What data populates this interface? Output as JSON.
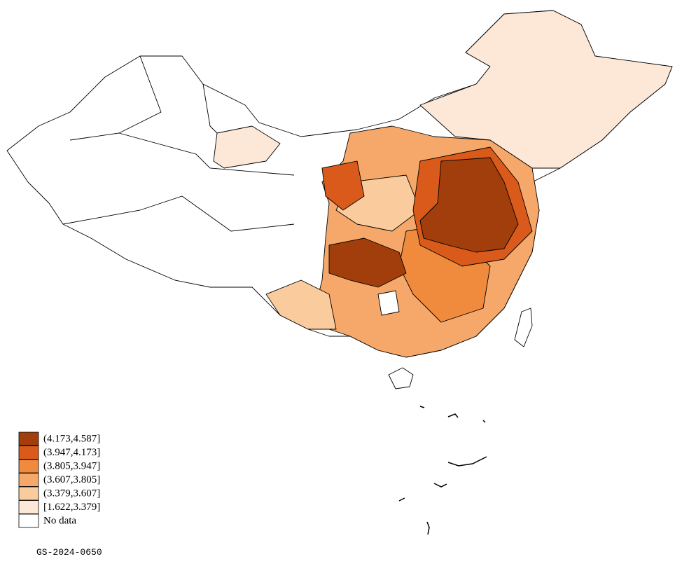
{
  "legend": {
    "items": [
      {
        "label": "(4.173,4.587]",
        "color": "#a13e0c"
      },
      {
        "label": "(3.947,4.173]",
        "color": "#d95a1a"
      },
      {
        "label": "(3.805,3.947]",
        "color": "#f08b3d"
      },
      {
        "label": "(3.607,3.805]",
        "color": "#f5a86a"
      },
      {
        "label": "(3.379,3.607]",
        "color": "#f9cb9d"
      },
      {
        "label": "[1.622,3.379]",
        "color": "#fde7d6"
      },
      {
        "label": "No data",
        "color": "#ffffff"
      }
    ]
  },
  "map_code": "GS-2024-0650"
}
